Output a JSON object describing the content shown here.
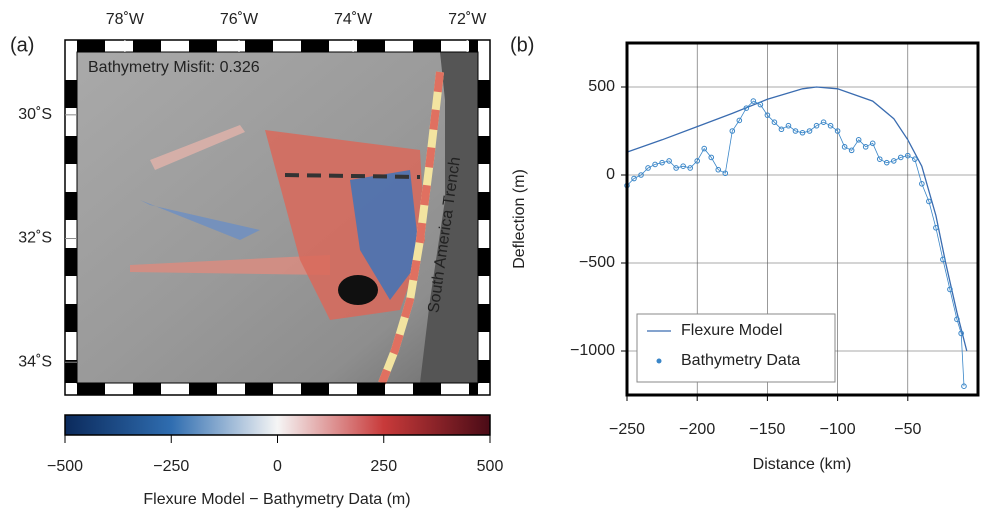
{
  "chart_data": [
    {
      "type": "map",
      "panel_label": "(a)",
      "annotation": "Bathymetry Misfit: 0.326",
      "feature_label": "South America Trench",
      "xlim": [
        -79.05,
        -71.6
      ],
      "ylim": [
        -34.53,
        -28.79
      ],
      "xticks": [
        {
          "value": -78,
          "label": "78˚W"
        },
        {
          "value": -76,
          "label": "76˚W"
        },
        {
          "value": -74,
          "label": "74˚W"
        },
        {
          "value": -72,
          "label": "72˚W"
        }
      ],
      "yticks": [
        {
          "value": -30,
          "label": "30˚S"
        },
        {
          "value": -32,
          "label": "32˚S"
        },
        {
          "value": -34,
          "label": "34˚S"
        }
      ],
      "colorbar": {
        "label": "Flexure Model − Bathymetry Data (m)",
        "lim": [
          -500,
          500
        ],
        "ticks": [
          {
            "value": -500,
            "label": "−500"
          },
          {
            "value": -250,
            "label": "−250"
          },
          0,
          250,
          500
        ],
        "colors": [
          "#0b2a5c",
          "#2f6db0",
          "#f5f5f5",
          "#c83a3a",
          "#4a0b16"
        ]
      }
    },
    {
      "type": "line",
      "panel_label": "(b)",
      "x_label": "Distance (km)",
      "y_label": "Deflection (m)",
      "xlim": [
        -250,
        0
      ],
      "ylim": [
        -1250,
        750
      ],
      "xticks": [
        {
          "value": -250,
          "label": "−250"
        },
        {
          "value": -200,
          "label": "−200"
        },
        {
          "value": -150,
          "label": "−150"
        },
        {
          "value": -100,
          "label": "−100"
        },
        {
          "value": -50,
          "label": "−50"
        }
      ],
      "yticks": [
        {
          "value": -1000,
          "label": "−1000"
        },
        {
          "value": -500,
          "label": "−500"
        },
        0,
        500
      ],
      "grid": true,
      "legend": "lower left",
      "series": [
        {
          "name": "Flexure Model",
          "color": "#3a6cb0",
          "mode": "line",
          "x": [
            -250,
            -225,
            -200,
            -175,
            -150,
            -125,
            -115,
            -100,
            -75,
            -60,
            -50,
            -40,
            -30,
            -23,
            -15,
            -8
          ],
          "values": [
            130,
            200,
            275,
            350,
            430,
            490,
            500,
            490,
            420,
            320,
            200,
            50,
            -230,
            -500,
            -780,
            -1000
          ]
        },
        {
          "name": "Bathymetry Data",
          "color": "#3a86c8",
          "mode": "markers+line",
          "x": [
            -250,
            -245,
            -240,
            -235,
            -230,
            -225,
            -220,
            -215,
            -210,
            -205,
            -200,
            -195,
            -190,
            -185,
            -180,
            -175,
            -170,
            -165,
            -160,
            -155,
            -150,
            -145,
            -140,
            -135,
            -130,
            -125,
            -120,
            -115,
            -110,
            -105,
            -100,
            -95,
            -90,
            -85,
            -80,
            -75,
            -70,
            -65,
            -60,
            -55,
            -50,
            -45,
            -40,
            -35,
            -30,
            -25,
            -20,
            -15,
            -12,
            -10
          ],
          "values": [
            -60,
            -20,
            0,
            40,
            60,
            70,
            80,
            40,
            50,
            40,
            80,
            150,
            100,
            30,
            10,
            250,
            310,
            380,
            420,
            400,
            340,
            300,
            260,
            280,
            250,
            240,
            250,
            280,
            300,
            280,
            250,
            160,
            140,
            200,
            160,
            180,
            90,
            70,
            80,
            100,
            110,
            90,
            -50,
            -150,
            -300,
            -480,
            -650,
            -820,
            -900,
            -1200
          ]
        }
      ]
    }
  ]
}
